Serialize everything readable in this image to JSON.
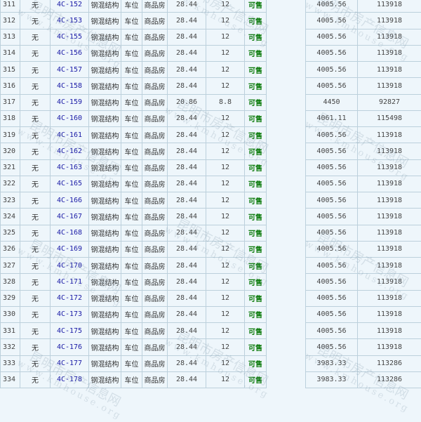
{
  "watermark": {
    "cn": "昆明市房产信息网",
    "url": "www.kmhouse.org"
  },
  "colors": {
    "link": "#1a1aa6",
    "status": "#0a7a0a",
    "background": "#eef6fb",
    "border": "#bcd0dc"
  },
  "rows": [
    {
      "idx": "311",
      "floor": "无",
      "code": "4C-152",
      "structure": "钢混结构",
      "use": "车位",
      "type": "商品房",
      "area": "28.44",
      "inner": "12",
      "status": "可售",
      "price": "4005.56",
      "total": "113918"
    },
    {
      "idx": "312",
      "floor": "无",
      "code": "4C-153",
      "structure": "钢混结构",
      "use": "车位",
      "type": "商品房",
      "area": "28.44",
      "inner": "12",
      "status": "可售",
      "price": "4005.56",
      "total": "113918"
    },
    {
      "idx": "313",
      "floor": "无",
      "code": "4C-155",
      "structure": "钢混结构",
      "use": "车位",
      "type": "商品房",
      "area": "28.44",
      "inner": "12",
      "status": "可售",
      "price": "4005.56",
      "total": "113918"
    },
    {
      "idx": "314",
      "floor": "无",
      "code": "4C-156",
      "structure": "钢混结构",
      "use": "车位",
      "type": "商品房",
      "area": "28.44",
      "inner": "12",
      "status": "可售",
      "price": "4005.56",
      "total": "113918"
    },
    {
      "idx": "315",
      "floor": "无",
      "code": "4C-157",
      "structure": "钢混结构",
      "use": "车位",
      "type": "商品房",
      "area": "28.44",
      "inner": "12",
      "status": "可售",
      "price": "4005.56",
      "total": "113918"
    },
    {
      "idx": "316",
      "floor": "无",
      "code": "4C-158",
      "structure": "钢混结构",
      "use": "车位",
      "type": "商品房",
      "area": "28.44",
      "inner": "12",
      "status": "可售",
      "price": "4005.56",
      "total": "113918"
    },
    {
      "idx": "317",
      "floor": "无",
      "code": "4C-159",
      "structure": "钢混结构",
      "use": "车位",
      "type": "商品房",
      "area": "20.86",
      "inner": "8.8",
      "status": "可售",
      "price": "4450",
      "total": "92827"
    },
    {
      "idx": "318",
      "floor": "无",
      "code": "4C-160",
      "structure": "钢混结构",
      "use": "车位",
      "type": "商品房",
      "area": "28.44",
      "inner": "12",
      "status": "可售",
      "price": "4061.11",
      "total": "115498"
    },
    {
      "idx": "319",
      "floor": "无",
      "code": "4C-161",
      "structure": "钢混结构",
      "use": "车位",
      "type": "商品房",
      "area": "28.44",
      "inner": "12",
      "status": "可售",
      "price": "4005.56",
      "total": "113918"
    },
    {
      "idx": "320",
      "floor": "无",
      "code": "4C-162",
      "structure": "钢混结构",
      "use": "车位",
      "type": "商品房",
      "area": "28.44",
      "inner": "12",
      "status": "可售",
      "price": "4005.56",
      "total": "113918"
    },
    {
      "idx": "321",
      "floor": "无",
      "code": "4C-163",
      "structure": "钢混结构",
      "use": "车位",
      "type": "商品房",
      "area": "28.44",
      "inner": "12",
      "status": "可售",
      "price": "4005.56",
      "total": "113918"
    },
    {
      "idx": "322",
      "floor": "无",
      "code": "4C-165",
      "structure": "钢混结构",
      "use": "车位",
      "type": "商品房",
      "area": "28.44",
      "inner": "12",
      "status": "可售",
      "price": "4005.56",
      "total": "113918"
    },
    {
      "idx": "323",
      "floor": "无",
      "code": "4C-166",
      "structure": "钢混结构",
      "use": "车位",
      "type": "商品房",
      "area": "28.44",
      "inner": "12",
      "status": "可售",
      "price": "4005.56",
      "total": "113918"
    },
    {
      "idx": "324",
      "floor": "无",
      "code": "4C-167",
      "structure": "钢混结构",
      "use": "车位",
      "type": "商品房",
      "area": "28.44",
      "inner": "12",
      "status": "可售",
      "price": "4005.56",
      "total": "113918"
    },
    {
      "idx": "325",
      "floor": "无",
      "code": "4C-168",
      "structure": "钢混结构",
      "use": "车位",
      "type": "商品房",
      "area": "28.44",
      "inner": "12",
      "status": "可售",
      "price": "4005.56",
      "total": "113918"
    },
    {
      "idx": "326",
      "floor": "无",
      "code": "4C-169",
      "structure": "钢混结构",
      "use": "车位",
      "type": "商品房",
      "area": "28.44",
      "inner": "12",
      "status": "可售",
      "price": "4005.56",
      "total": "113918"
    },
    {
      "idx": "327",
      "floor": "无",
      "code": "4C-170",
      "structure": "钢混结构",
      "use": "车位",
      "type": "商品房",
      "area": "28.44",
      "inner": "12",
      "status": "可售",
      "price": "4005.56",
      "total": "113918"
    },
    {
      "idx": "328",
      "floor": "无",
      "code": "4C-171",
      "structure": "钢混结构",
      "use": "车位",
      "type": "商品房",
      "area": "28.44",
      "inner": "12",
      "status": "可售",
      "price": "4005.56",
      "total": "113918"
    },
    {
      "idx": "329",
      "floor": "无",
      "code": "4C-172",
      "structure": "钢混结构",
      "use": "车位",
      "type": "商品房",
      "area": "28.44",
      "inner": "12",
      "status": "可售",
      "price": "4005.56",
      "total": "113918"
    },
    {
      "idx": "330",
      "floor": "无",
      "code": "4C-173",
      "structure": "钢混结构",
      "use": "车位",
      "type": "商品房",
      "area": "28.44",
      "inner": "12",
      "status": "可售",
      "price": "4005.56",
      "total": "113918"
    },
    {
      "idx": "331",
      "floor": "无",
      "code": "4C-175",
      "structure": "钢混结构",
      "use": "车位",
      "type": "商品房",
      "area": "28.44",
      "inner": "12",
      "status": "可售",
      "price": "4005.56",
      "total": "113918"
    },
    {
      "idx": "332",
      "floor": "无",
      "code": "4C-176",
      "structure": "钢混结构",
      "use": "车位",
      "type": "商品房",
      "area": "28.44",
      "inner": "12",
      "status": "可售",
      "price": "4005.56",
      "total": "113918"
    },
    {
      "idx": "333",
      "floor": "无",
      "code": "4C-177",
      "structure": "钢混结构",
      "use": "车位",
      "type": "商品房",
      "area": "28.44",
      "inner": "12",
      "status": "可售",
      "price": "3983.33",
      "total": "113286"
    },
    {
      "idx": "334",
      "floor": "无",
      "code": "4C-178",
      "structure": "钢混结构",
      "use": "车位",
      "type": "商品房",
      "area": "28.44",
      "inner": "12",
      "status": "可售",
      "price": "3983.33",
      "total": "113286"
    }
  ]
}
